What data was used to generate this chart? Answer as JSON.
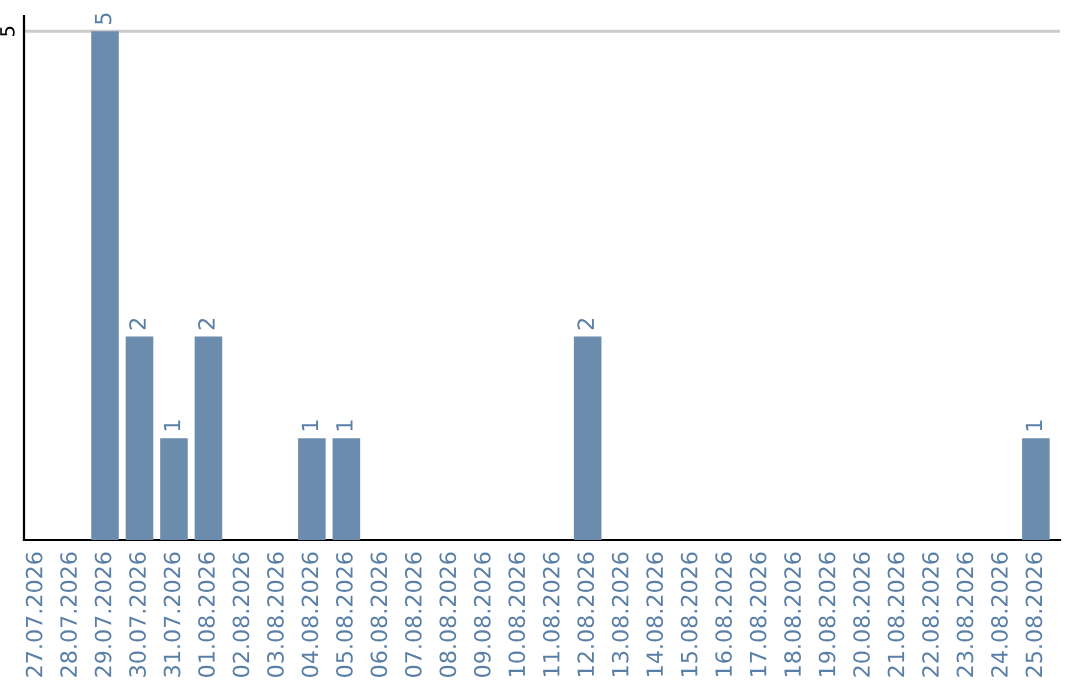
{
  "chart_data": {
    "type": "bar",
    "categories": [
      "27.07.2026",
      "28.07.2026",
      "29.07.2026",
      "30.07.2026",
      "31.07.2026",
      "01.08.2026",
      "02.08.2026",
      "03.08.2026",
      "04.08.2026",
      "05.08.2026",
      "06.08.2026",
      "07.08.2026",
      "08.08.2026",
      "09.08.2026",
      "10.08.2026",
      "11.08.2026",
      "12.08.2026",
      "13.08.2026",
      "14.08.2026",
      "15.08.2026",
      "16.08.2026",
      "17.08.2026",
      "18.08.2026",
      "19.08.2026",
      "20.08.2026",
      "21.08.2026",
      "22.08.2026",
      "23.08.2026",
      "24.08.2026",
      "25.08.2026"
    ],
    "values": [
      0,
      0,
      5,
      2,
      1,
      2,
      0,
      0,
      1,
      1,
      0,
      0,
      0,
      0,
      0,
      0,
      2,
      0,
      0,
      0,
      0,
      0,
      0,
      0,
      0,
      0,
      0,
      0,
      0,
      1
    ],
    "value_labels": [
      null,
      null,
      "5",
      "2",
      "1",
      "2",
      null,
      null,
      "1",
      "1",
      null,
      null,
      null,
      null,
      null,
      null,
      "2",
      null,
      null,
      null,
      null,
      null,
      null,
      null,
      null,
      null,
      null,
      null,
      null,
      "1"
    ],
    "color": "#6b8cad",
    "ylim": [
      0,
      5.15
    ],
    "yticks": [
      5
    ],
    "grid": "y"
  }
}
